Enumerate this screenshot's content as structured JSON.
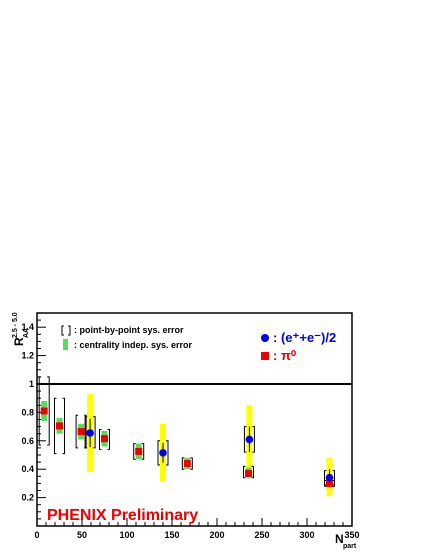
{
  "chart_data": {
    "type": "scatter",
    "xlabel": "N",
    "xlabel_sub": "part",
    "ylabel": "R",
    "ylabel_sub": "AA",
    "ylabel_sup": "2.5 - 5.0",
    "xlim": [
      0,
      350
    ],
    "ylim": [
      0,
      1.5
    ],
    "xticks": [
      0,
      50,
      100,
      150,
      200,
      250,
      300,
      350
    ],
    "yticks": [
      0.2,
      0.4,
      0.6,
      0.8,
      1.0,
      1.2,
      1.4
    ],
    "grid": false,
    "reference_line_y": 1,
    "legend_syst": {
      "point_label": ": point-by-point sys. error",
      "central_label": ": centrality indep. sys. error"
    },
    "legend_series": {
      "electron_label": ": (e⁺+e⁻)/2",
      "pion_label": ": π⁰"
    },
    "watermark": "PHENIX Preliminary",
    "colors": {
      "electron": "#0000ee",
      "pion": "#ee0000",
      "electron_sys": "#ffff00",
      "pion_central_sys": "#55dd55",
      "watermark": "#ee0000",
      "bracket": "#000000"
    },
    "series": [
      {
        "name": "(e+e-)/2",
        "marker": "circle",
        "points": [
          {
            "x": 59,
            "y": 0.655,
            "stat": 0.1,
            "sys_lo": 0.38,
            "sys_hi": 0.93
          },
          {
            "x": 140,
            "y": 0.515,
            "stat": 0.07,
            "sys_lo": 0.31,
            "sys_hi": 0.72
          },
          {
            "x": 236,
            "y": 0.61,
            "stat": 0.09,
            "sys_lo": 0.35,
            "sys_hi": 0.85
          },
          {
            "x": 325,
            "y": 0.34,
            "stat": 0.06,
            "sys_lo": 0.21,
            "sys_hi": 0.48
          }
        ]
      },
      {
        "name": "pi0",
        "marker": "square",
        "points": [
          {
            "x": 8,
            "y": 0.81,
            "stat": 0.02,
            "cent_lo": 0.74,
            "cent_hi": 0.88,
            "br_lo": 0.57,
            "br_hi": 1.05
          },
          {
            "x": 25,
            "y": 0.705,
            "stat": 0.02,
            "cent_lo": 0.65,
            "cent_hi": 0.76,
            "br_lo": 0.51,
            "br_hi": 0.9
          },
          {
            "x": 49,
            "y": 0.665,
            "stat": 0.02,
            "cent_lo": 0.61,
            "cent_hi": 0.72,
            "br_lo": 0.55,
            "br_hi": 0.78
          },
          {
            "x": 75,
            "y": 0.615,
            "stat": 0.02,
            "cent_lo": 0.56,
            "cent_hi": 0.67,
            "br_lo": 0.54,
            "br_hi": 0.68
          },
          {
            "x": 113,
            "y": 0.525,
            "stat": 0.015,
            "cent_lo": 0.47,
            "cent_hi": 0.58,
            "br_lo": 0.47,
            "br_hi": 0.58
          },
          {
            "x": 167,
            "y": 0.44,
            "stat": 0.015,
            "cent_lo": 0.4,
            "cent_hi": 0.48,
            "br_lo": 0.4,
            "br_hi": 0.48
          },
          {
            "x": 235,
            "y": 0.37,
            "stat": 0.015,
            "cent_lo": 0.35,
            "cent_hi": 0.41,
            "br_lo": 0.34,
            "br_hi": 0.42
          },
          {
            "x": 325,
            "y": 0.3,
            "stat": 0.01,
            "cent_lo": 0.28,
            "cent_hi": 0.32,
            "br_lo": 0.28,
            "br_hi": 0.32
          }
        ]
      },
      {
        "name": "(e+e-)/2 point-by-point sys",
        "marker": "bracket",
        "points": [
          {
            "x": 59,
            "lo": 0.55,
            "hi": 0.77
          },
          {
            "x": 140,
            "lo": 0.43,
            "hi": 0.6
          },
          {
            "x": 236,
            "lo": 0.52,
            "hi": 0.7
          },
          {
            "x": 325,
            "lo": 0.29,
            "hi": 0.39
          }
        ]
      }
    ]
  }
}
